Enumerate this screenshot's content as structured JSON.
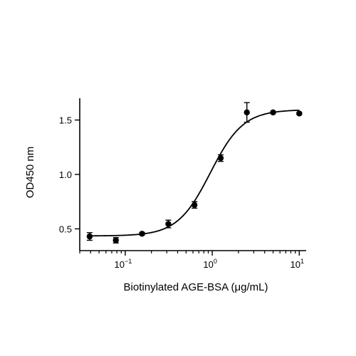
{
  "chart_data": {
    "type": "scatter",
    "xlabel": "Biotinylated AGE-BSA (μg/mL)",
    "ylabel": "OD450 nm",
    "x_scale": "log",
    "xlim": [
      0.03,
      12
    ],
    "ylim": [
      0.3,
      1.7
    ],
    "x_ticks": [
      {
        "value": 0.1,
        "base": "10",
        "exp": "−1"
      },
      {
        "value": 1,
        "base": "10",
        "exp": "0"
      },
      {
        "value": 10,
        "base": "10",
        "exp": "1"
      }
    ],
    "y_ticks": [
      {
        "value": 0.5,
        "label": "0.5"
      },
      {
        "value": 1.0,
        "label": "1.0"
      },
      {
        "value": 1.5,
        "label": "1.5"
      }
    ],
    "grid": false,
    "points": [
      {
        "x": 0.039,
        "y": 0.43,
        "err": 0.035
      },
      {
        "x": 0.078,
        "y": 0.395,
        "err": 0.025
      },
      {
        "x": 0.156,
        "y": 0.455,
        "err": 0.012
      },
      {
        "x": 0.3125,
        "y": 0.545,
        "err": 0.035
      },
      {
        "x": 0.625,
        "y": 0.72,
        "err": 0.03
      },
      {
        "x": 1.25,
        "y": 1.15,
        "err": 0.03
      },
      {
        "x": 2.5,
        "y": 1.57,
        "err": 0.09
      },
      {
        "x": 5,
        "y": 1.57,
        "err": 0.01
      },
      {
        "x": 10,
        "y": 1.56,
        "err": 0.01
      }
    ],
    "fit": {
      "type": "4PL",
      "bottom": 0.435,
      "top": 1.595,
      "ec50": 0.95,
      "hill": 2.3
    }
  }
}
